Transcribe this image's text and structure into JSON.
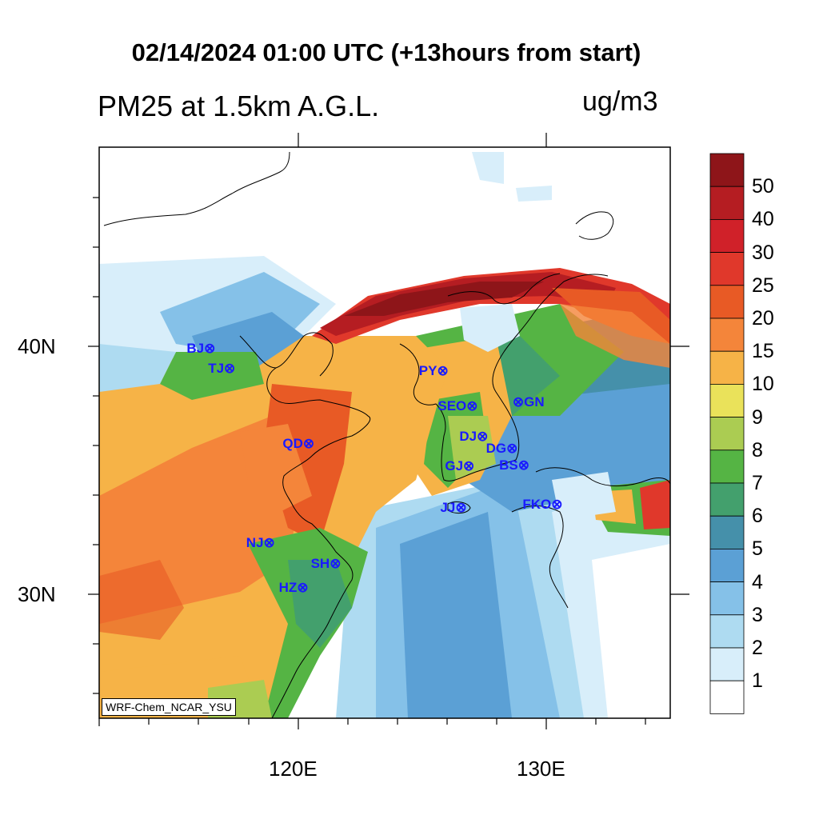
{
  "title": "02/14/2024 01:00 UTC (+13hours from start)",
  "left_title": "PM25 at 1.5km A.G.L.",
  "units": "ug/m3",
  "footer": "WRF-Chem_NCAR_YSU",
  "lat_labels": [
    "40N",
    "30N"
  ],
  "lon_labels": [
    "120E",
    "130E"
  ],
  "colorbar": {
    "labels": [
      "50",
      "40",
      "30",
      "25",
      "20",
      "15",
      "10",
      "9",
      "8",
      "7",
      "6",
      "5",
      "4",
      "3",
      "2",
      "1"
    ],
    "colors": [
      "#8e1519",
      "#b51d22",
      "#d02129",
      "#e0382b",
      "#e85a25",
      "#f4853a",
      "#f6b347",
      "#eae25a",
      "#abcc52",
      "#55b444",
      "#43a06d",
      "#4590aa",
      "#5ba0d5",
      "#85c1e8",
      "#aedbf1",
      "#d8eefa",
      "#ffffff"
    ]
  },
  "stations": [
    {
      "label": "BJ",
      "lon": 116.4,
      "lat": 39.9
    },
    {
      "label": "TJ",
      "lon": 117.2,
      "lat": 39.1
    },
    {
      "label": "PY",
      "lon": 125.8,
      "lat": 39.0
    },
    {
      "label": "SEO",
      "lon": 126.98,
      "lat": 37.57
    },
    {
      "label": "GN",
      "lon": 128.9,
      "lat": 37.75
    },
    {
      "label": "QD",
      "lon": 120.4,
      "lat": 36.07
    },
    {
      "label": "DJ",
      "lon": 127.4,
      "lat": 36.35
    },
    {
      "label": "DG",
      "lon": 128.6,
      "lat": 35.87
    },
    {
      "label": "GJ",
      "lon": 126.85,
      "lat": 35.16
    },
    {
      "label": "BS",
      "lon": 129.07,
      "lat": 35.18
    },
    {
      "label": "JJ",
      "lon": 126.53,
      "lat": 33.5
    },
    {
      "label": "FKO",
      "lon": 130.4,
      "lat": 33.6
    },
    {
      "label": "NJ",
      "lon": 118.8,
      "lat": 32.06
    },
    {
      "label": "SH",
      "lon": 121.47,
      "lat": 31.23
    },
    {
      "label": "HZ",
      "lon": 120.15,
      "lat": 30.27
    }
  ]
}
